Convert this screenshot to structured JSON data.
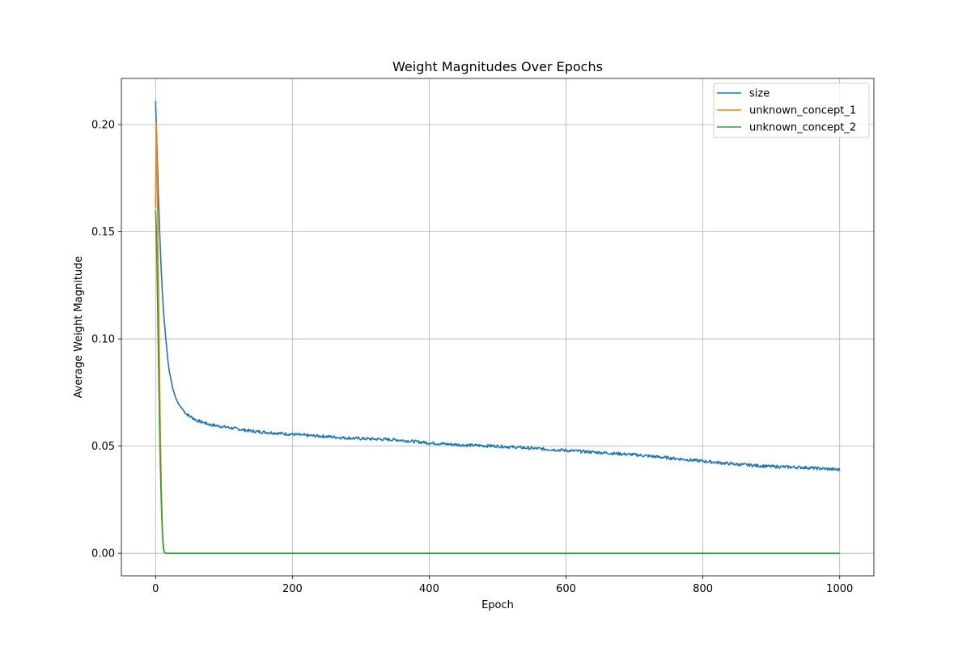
{
  "chart_data": {
    "type": "line",
    "title": "Weight Magnitudes Over Epochs",
    "xlabel": "Epoch",
    "ylabel": "Average Weight Magnitude",
    "xlim": [
      -50,
      1050
    ],
    "ylim": [
      -0.0105,
      0.2215
    ],
    "xticks": [
      0,
      200,
      400,
      600,
      800,
      1000
    ],
    "xtick_labels": [
      "0",
      "200",
      "400",
      "600",
      "800",
      "1000"
    ],
    "yticks": [
      0.0,
      0.05,
      0.1,
      0.15,
      0.2
    ],
    "ytick_labels": [
      "0.00",
      "0.05",
      "0.10",
      "0.15",
      "0.20"
    ],
    "grid": true,
    "legend_position": "top-right",
    "series": [
      {
        "name": "size",
        "color": "#1f77b4",
        "x": [
          0,
          2,
          4,
          6,
          8,
          10,
          12,
          15,
          18,
          20,
          25,
          30,
          35,
          40,
          45,
          50,
          60,
          70,
          80,
          100,
          120,
          140,
          160,
          180,
          200,
          220,
          250,
          270,
          300,
          350,
          400,
          450,
          500,
          550,
          600,
          650,
          700,
          750,
          800,
          850,
          900,
          950,
          1000
        ],
        "y": [
          0.211,
          0.19,
          0.168,
          0.15,
          0.134,
          0.121,
          0.111,
          0.1,
          0.09,
          0.085,
          0.077,
          0.072,
          0.069,
          0.067,
          0.065,
          0.064,
          0.062,
          0.061,
          0.06,
          0.059,
          0.058,
          0.057,
          0.0565,
          0.056,
          0.0555,
          0.055,
          0.0545,
          0.054,
          0.0535,
          0.053,
          0.0515,
          0.0505,
          0.05,
          0.049,
          0.048,
          0.047,
          0.046,
          0.0445,
          0.043,
          0.0415,
          0.0405,
          0.04,
          0.039
        ]
      },
      {
        "name": "unknown_concept_1",
        "color": "#ff7f0e",
        "x": [
          0,
          1,
          2,
          3,
          4,
          5,
          6,
          7,
          8,
          9,
          10,
          11,
          12,
          13,
          14,
          15,
          20,
          50,
          100,
          200,
          400,
          600,
          800,
          1000
        ],
        "y": [
          0.161,
          0.201,
          0.182,
          0.158,
          0.131,
          0.104,
          0.079,
          0.056,
          0.037,
          0.022,
          0.011,
          0.005,
          0.002,
          0.0005,
          0.0001,
          0.0,
          0.0,
          0.0,
          0.0,
          0.0,
          0.0,
          0.0,
          0.0,
          0.0
        ]
      },
      {
        "name": "unknown_concept_2",
        "color": "#2ca02c",
        "x": [
          0,
          1,
          2,
          3,
          4,
          5,
          6,
          7,
          8,
          9,
          10,
          11,
          12,
          13,
          14,
          15,
          20,
          50,
          100,
          200,
          400,
          600,
          800,
          1000
        ],
        "y": [
          0.16,
          0.152,
          0.135,
          0.115,
          0.095,
          0.075,
          0.057,
          0.041,
          0.028,
          0.017,
          0.009,
          0.004,
          0.0015,
          0.0004,
          0.0001,
          0.0,
          0.0,
          0.0,
          0.0,
          0.0,
          0.0,
          0.0,
          0.0,
          0.0
        ]
      }
    ]
  }
}
